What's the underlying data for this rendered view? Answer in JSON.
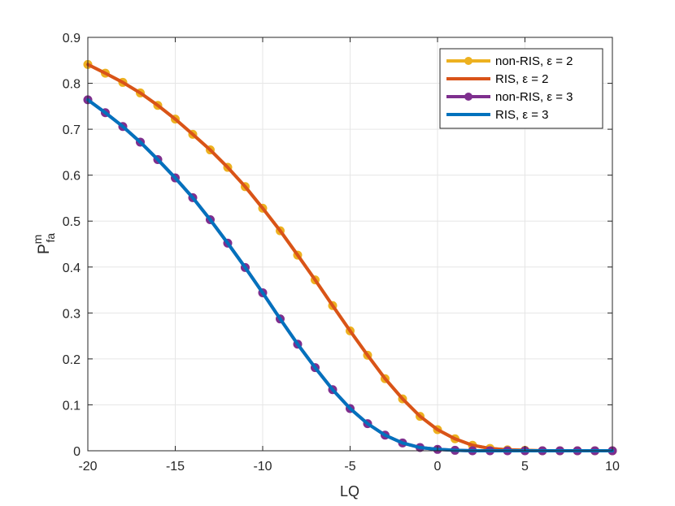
{
  "chart_data": {
    "type": "line",
    "xlabel": "LQ",
    "ylabel": {
      "main": "P",
      "sup": "m",
      "sub": "fa"
    },
    "xlim": [
      -20,
      10
    ],
    "ylim": [
      0,
      0.9
    ],
    "xticks": [
      "-20",
      "-15",
      "-10",
      "-5",
      "0",
      "5",
      "10"
    ],
    "yticks": [
      "0",
      "0.1",
      "0.2",
      "0.3",
      "0.4",
      "0.5",
      "0.6",
      "0.7",
      "0.8",
      "0.9"
    ],
    "grid": true,
    "legend_position": "top-right",
    "x": [
      -20,
      -19,
      -18,
      -17,
      -16,
      -15,
      -14,
      -13,
      -12,
      -11,
      -10,
      -9,
      -8,
      -7,
      -6,
      -5,
      -4,
      -3,
      -2,
      -1,
      0,
      1,
      2,
      3,
      4,
      5,
      6,
      7,
      8,
      9,
      10
    ],
    "series": [
      {
        "name": "non-RIS, ε = 2",
        "color": "#EDB120",
        "marker": "circle",
        "values": [
          0.841,
          0.822,
          0.802,
          0.779,
          0.752,
          0.722,
          0.689,
          0.655,
          0.617,
          0.575,
          0.528,
          0.479,
          0.426,
          0.372,
          0.316,
          0.261,
          0.208,
          0.157,
          0.113,
          0.075,
          0.046,
          0.026,
          0.012,
          0.005,
          0.002,
          0.001,
          0.0,
          0.0,
          0.0,
          0.0,
          0.0
        ]
      },
      {
        "name": "RIS, ε = 2",
        "color": "#D95319",
        "marker": "none",
        "values": [
          0.841,
          0.822,
          0.802,
          0.779,
          0.752,
          0.722,
          0.689,
          0.655,
          0.617,
          0.575,
          0.528,
          0.479,
          0.426,
          0.372,
          0.316,
          0.261,
          0.208,
          0.157,
          0.113,
          0.075,
          0.046,
          0.026,
          0.012,
          0.005,
          0.002,
          0.001,
          0.0,
          0.0,
          0.0,
          0.0,
          0.0
        ]
      },
      {
        "name": "non-RIS, ε = 3",
        "color": "#7E2F8E",
        "marker": "circle",
        "values": [
          0.764,
          0.736,
          0.706,
          0.672,
          0.634,
          0.594,
          0.551,
          0.503,
          0.452,
          0.399,
          0.344,
          0.287,
          0.232,
          0.181,
          0.133,
          0.092,
          0.059,
          0.034,
          0.017,
          0.007,
          0.003,
          0.001,
          0.0,
          0.0,
          0.0,
          0.0,
          0.0,
          0.0,
          0.0,
          0.0,
          0.0
        ]
      },
      {
        "name": "RIS, ε = 3",
        "color": "#0072BD",
        "marker": "none",
        "values": [
          0.764,
          0.736,
          0.706,
          0.672,
          0.634,
          0.594,
          0.551,
          0.503,
          0.452,
          0.399,
          0.344,
          0.287,
          0.232,
          0.181,
          0.133,
          0.092,
          0.059,
          0.034,
          0.017,
          0.007,
          0.003,
          0.001,
          0.0,
          0.0,
          0.0,
          0.0,
          0.0,
          0.0,
          0.0,
          0.0,
          0.0
        ]
      }
    ],
    "legend_order": [
      0,
      1,
      2,
      3
    ]
  }
}
